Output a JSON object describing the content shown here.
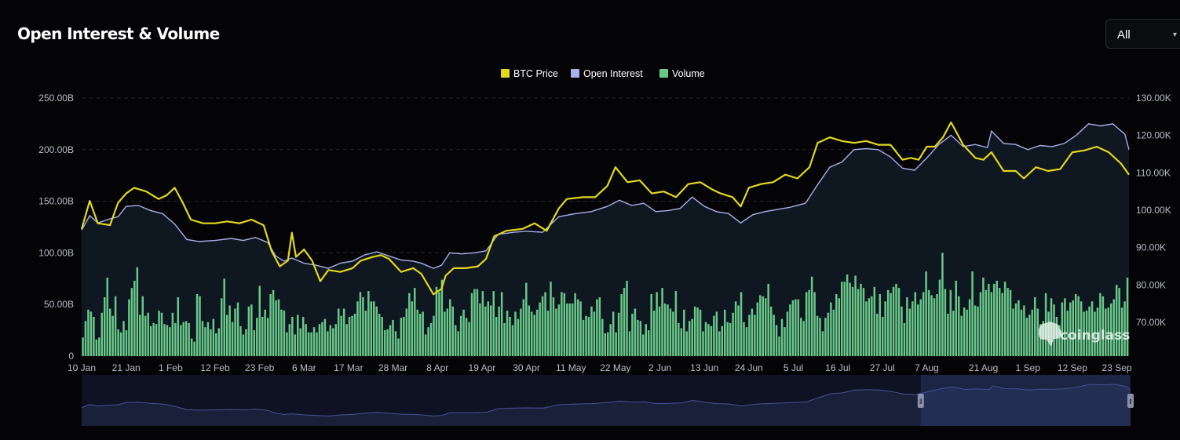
{
  "header": {
    "title": "Open Interest & Volume",
    "range_select": {
      "value": "All",
      "caret": "▾"
    }
  },
  "watermark": "coinglass",
  "colors": {
    "price": "#e3d81c",
    "open_interest": "#a9b0e8",
    "volume": "#69c989",
    "oi_area": "#0f1721",
    "grid": "#22252c"
  },
  "chart_data": {
    "type": "line",
    "legend_position": "top-center",
    "grid": true,
    "ylabel": "",
    "xlabel": "",
    "x_ticks": [
      "10 Jan",
      "21 Jan",
      "1 Feb",
      "12 Feb",
      "23 Feb",
      "6 Mar",
      "17 Mar",
      "28 Mar",
      "8 Apr",
      "19 Apr",
      "30 Apr",
      "11 May",
      "22 May",
      "2 Jun",
      "13 Jun",
      "24 Jun",
      "5 Jul",
      "16 Jul",
      "27 Jul",
      "7 Aug",
      "21 Aug",
      "1 Sep",
      "12 Sep",
      "23 Sep"
    ],
    "y_left": {
      "ticks": [
        "0",
        "50.00B",
        "100.00B",
        "150.00B",
        "200.00B",
        "250.00B"
      ],
      "range": [
        0,
        250
      ]
    },
    "y_right": {
      "ticks": [
        "70.00K",
        "80.00K",
        "90.00K",
        "100.00K",
        "110.00K",
        "120.00K",
        "130.00K"
      ],
      "range": [
        61,
        130
      ]
    },
    "series": [
      {
        "name": "BTC Price",
        "axis": "right",
        "unit": "K USD",
        "points": [
          [
            "10 Jan",
            95.0
          ],
          [
            "12 Jan",
            102.5
          ],
          [
            "14 Jan",
            96.5
          ],
          [
            "17 Jan",
            96.0
          ],
          [
            "19 Jan",
            102.0
          ],
          [
            "21 Jan",
            104.5
          ],
          [
            "23 Jan",
            106.0
          ],
          [
            "26 Jan",
            105.0
          ],
          [
            "29 Jan",
            103.0
          ],
          [
            "31 Jan",
            104.0
          ],
          [
            "2 Feb",
            106.0
          ],
          [
            "4 Feb",
            102.0
          ],
          [
            "6 Feb",
            97.5
          ],
          [
            "9 Feb",
            96.5
          ],
          [
            "12 Feb",
            96.5
          ],
          [
            "15 Feb",
            97.0
          ],
          [
            "18 Feb",
            96.5
          ],
          [
            "21 Feb",
            97.5
          ],
          [
            "24 Feb",
            96.0
          ],
          [
            "26 Feb",
            89.0
          ],
          [
            "28 Feb",
            85.0
          ],
          [
            "2 Mar",
            86.5
          ],
          [
            "3 Mar",
            94.0
          ],
          [
            "4 Mar",
            87.5
          ],
          [
            "6 Mar",
            89.5
          ],
          [
            "8 Mar",
            86.5
          ],
          [
            "10 Mar",
            81.0
          ],
          [
            "12 Mar",
            84.0
          ],
          [
            "15 Mar",
            83.5
          ],
          [
            "18 Mar",
            84.5
          ],
          [
            "20 Mar",
            86.5
          ],
          [
            "23 Mar",
            87.5
          ],
          [
            "25 Mar",
            88.0
          ],
          [
            "27 Mar",
            87.0
          ],
          [
            "30 Mar",
            83.5
          ],
          [
            "2 Apr",
            84.5
          ],
          [
            "4 Apr",
            83.0
          ],
          [
            "7 Apr",
            77.5
          ],
          [
            "9 Apr",
            79.0
          ],
          [
            "10 Apr",
            82.5
          ],
          [
            "12 Apr",
            84.5
          ],
          [
            "15 Apr",
            84.5
          ],
          [
            "18 Apr",
            85.0
          ],
          [
            "20 Apr",
            87.0
          ],
          [
            "22 Apr",
            93.0
          ],
          [
            "25 Apr",
            94.5
          ],
          [
            "29 Apr",
            95.0
          ],
          [
            "2 May",
            96.5
          ],
          [
            "5 May",
            94.5
          ],
          [
            "8 May",
            100.5
          ],
          [
            "10 May",
            103.0
          ],
          [
            "14 May",
            103.5
          ],
          [
            "17 May",
            103.5
          ],
          [
            "20 May",
            106.5
          ],
          [
            "22 May",
            111.5
          ],
          [
            "25 May",
            107.5
          ],
          [
            "28 May",
            108.0
          ],
          [
            "31 May",
            104.5
          ],
          [
            "3 Jun",
            105.0
          ],
          [
            "6 Jun",
            103.5
          ],
          [
            "9 Jun",
            107.0
          ],
          [
            "12 Jun",
            107.5
          ],
          [
            "15 Jun",
            105.5
          ],
          [
            "17 Jun",
            104.5
          ],
          [
            "20 Jun",
            103.5
          ],
          [
            "22 Jun",
            101.0
          ],
          [
            "24 Jun",
            106.0
          ],
          [
            "27 Jun",
            107.0
          ],
          [
            "30 Jun",
            107.5
          ],
          [
            "3 Jul",
            109.5
          ],
          [
            "6 Jul",
            108.5
          ],
          [
            "9 Jul",
            111.5
          ],
          [
            "11 Jul",
            118.0
          ],
          [
            "14 Jul",
            119.5
          ],
          [
            "17 Jul",
            118.5
          ],
          [
            "20 Jul",
            118.0
          ],
          [
            "23 Jul",
            118.5
          ],
          [
            "26 Jul",
            117.5
          ],
          [
            "29 Jul",
            117.5
          ],
          [
            "1 Aug",
            113.5
          ],
          [
            "3 Aug",
            114.0
          ],
          [
            "5 Aug",
            113.5
          ],
          [
            "7 Aug",
            117.0
          ],
          [
            "9 Aug",
            117.0
          ],
          [
            "11 Aug",
            119.5
          ],
          [
            "13 Aug",
            123.5
          ],
          [
            "16 Aug",
            117.5
          ],
          [
            "19 Aug",
            114.0
          ],
          [
            "21 Aug",
            113.5
          ],
          [
            "23 Aug",
            115.5
          ],
          [
            "26 Aug",
            110.5
          ],
          [
            "29 Aug",
            110.5
          ],
          [
            "31 Aug",
            108.5
          ],
          [
            "3 Sep",
            111.5
          ],
          [
            "6 Sep",
            110.5
          ],
          [
            "9 Sep",
            111.0
          ],
          [
            "12 Sep",
            115.5
          ],
          [
            "15 Sep",
            116.0
          ],
          [
            "18 Sep",
            117.0
          ],
          [
            "21 Sep",
            115.5
          ],
          [
            "24 Sep",
            112.5
          ],
          [
            "26 Sep",
            109.5
          ]
        ]
      },
      {
        "name": "Open Interest",
        "axis": "left",
        "unit": "B USD",
        "points": [
          [
            "10 Jan",
            122
          ],
          [
            "12 Jan",
            136
          ],
          [
            "14 Jan",
            129
          ],
          [
            "17 Jan",
            133
          ],
          [
            "19 Jan",
            135
          ],
          [
            "21 Jan",
            145
          ],
          [
            "24 Jan",
            146
          ],
          [
            "27 Jan",
            141
          ],
          [
            "30 Jan",
            138
          ],
          [
            "2 Feb",
            128
          ],
          [
            "5 Feb",
            113
          ],
          [
            "8 Feb",
            111
          ],
          [
            "12 Feb",
            112
          ],
          [
            "16 Feb",
            114
          ],
          [
            "19 Feb",
            112
          ],
          [
            "22 Feb",
            115
          ],
          [
            "25 Feb",
            110
          ],
          [
            "27 Feb",
            97
          ],
          [
            "1 Mar",
            92
          ],
          [
            "3 Mar",
            95
          ],
          [
            "6 Mar",
            90
          ],
          [
            "9 Mar",
            88
          ],
          [
            "12 Mar",
            85
          ],
          [
            "15 Mar",
            90
          ],
          [
            "18 Mar",
            92
          ],
          [
            "21 Mar",
            98
          ],
          [
            "24 Mar",
            101
          ],
          [
            "27 Mar",
            97
          ],
          [
            "30 Mar",
            93
          ],
          [
            "2 Apr",
            92
          ],
          [
            "4 Apr",
            90
          ],
          [
            "7 Apr",
            85
          ],
          [
            "9 Apr",
            88
          ],
          [
            "11 Apr",
            100
          ],
          [
            "14 Apr",
            99
          ],
          [
            "17 Apr",
            100
          ],
          [
            "20 Apr",
            102
          ],
          [
            "23 Apr",
            118
          ],
          [
            "27 Apr",
            120
          ],
          [
            "30 Apr",
            121
          ],
          [
            "4 May",
            120
          ],
          [
            "8 May",
            135
          ],
          [
            "12 May",
            138
          ],
          [
            "16 May",
            140
          ],
          [
            "20 May",
            145
          ],
          [
            "23 May",
            151
          ],
          [
            "26 May",
            146
          ],
          [
            "29 May",
            148
          ],
          [
            "1 Jun",
            140
          ],
          [
            "4 Jun",
            141
          ],
          [
            "7 Jun",
            143
          ],
          [
            "10 Jun",
            154
          ],
          [
            "13 Jun",
            145
          ],
          [
            "16 Jun",
            140
          ],
          [
            "19 Jun",
            138
          ],
          [
            "22 Jun",
            129
          ],
          [
            "25 Jun",
            137
          ],
          [
            "28 Jun",
            140
          ],
          [
            "1 Jul",
            142
          ],
          [
            "4 Jul",
            144
          ],
          [
            "8 Jul",
            148
          ],
          [
            "11 Jul",
            166
          ],
          [
            "14 Jul",
            183
          ],
          [
            "17 Jul",
            188
          ],
          [
            "20 Jul",
            200
          ],
          [
            "23 Jul",
            201
          ],
          [
            "26 Jul",
            200
          ],
          [
            "29 Jul",
            193
          ],
          [
            "1 Aug",
            182
          ],
          [
            "4 Aug",
            180
          ],
          [
            "7 Aug",
            192
          ],
          [
            "10 Aug",
            205
          ],
          [
            "13 Aug",
            214
          ],
          [
            "16 Aug",
            203
          ],
          [
            "19 Aug",
            205
          ],
          [
            "22 Aug",
            202
          ],
          [
            "23 Aug",
            218
          ],
          [
            "26 Aug",
            206
          ],
          [
            "29 Aug",
            205
          ],
          [
            "1 Sep",
            200
          ],
          [
            "4 Sep",
            204
          ],
          [
            "7 Sep",
            203
          ],
          [
            "10 Sep",
            206
          ],
          [
            "13 Sep",
            214
          ],
          [
            "16 Sep",
            225
          ],
          [
            "19 Sep",
            223
          ],
          [
            "22 Sep",
            225
          ],
          [
            "25 Sep",
            215
          ],
          [
            "26 Sep",
            200
          ]
        ]
      },
      {
        "name": "Volume",
        "axis": "left",
        "unit": "B USD",
        "kind": "bar",
        "x_range": [
          "10 Jan",
          "26 Sep"
        ],
        "values": [
          18,
          34,
          45,
          43,
          38,
          16,
          18,
          42,
          57,
          76,
          46,
          39,
          58,
          26,
          23,
          34,
          25,
          55,
          66,
          73,
          86,
          40,
          58,
          39,
          42,
          29,
          32,
          31,
          44,
          42,
          31,
          30,
          28,
          42,
          32,
          57,
          30,
          33,
          34,
          32,
          17,
          14,
          60,
          58,
          34,
          28,
          33,
          26,
          36,
          22,
          27,
          56,
          75,
          40,
          49,
          33,
          46,
          52,
          29,
          21,
          26,
          48,
          50,
          25,
          37,
          68,
          38,
          45,
          37,
          60,
          64,
          54,
          55,
          45,
          44,
          23,
          31,
          38,
          21,
          40,
          27,
          38,
          31,
          23,
          23,
          28,
          23,
          31,
          33,
          36,
          24,
          30,
          27,
          31,
          46,
          39,
          46,
          31,
          38,
          39,
          41,
          53,
          62,
          57,
          44,
          63,
          53,
          53,
          48,
          41,
          38,
          25,
          26,
          30,
          35,
          24,
          17,
          37,
          38,
          46,
          61,
          53,
          66,
          45,
          41,
          43,
          21,
          28,
          32,
          39,
          67,
          62,
          74,
          43,
          46,
          55,
          48,
          30,
          24,
          39,
          45,
          37,
          33,
          61,
          65,
          65,
          51,
          63,
          48,
          53,
          49,
          63,
          38,
          48,
          62,
          32,
          44,
          38,
          30,
          43,
          36,
          46,
          55,
          71,
          49,
          43,
          40,
          45,
          52,
          58,
          62,
          44,
          72,
          57,
          46,
          50,
          62,
          61,
          51,
          51,
          51,
          61,
          55,
          53,
          35,
          39,
          38,
          48,
          43,
          55,
          57,
          36,
          22,
          23,
          31,
          43,
          23,
          42,
          60,
          66,
          73,
          24,
          41,
          46,
          35,
          34,
          21,
          31,
          25,
          60,
          44,
          62,
          48,
          66,
          51,
          50,
          46,
          43,
          63,
          32,
          27,
          45,
          24,
          34,
          36,
          48,
          47,
          45,
          24,
          33,
          31,
          29,
          39,
          43,
          24,
          29,
          45,
          33,
          32,
          42,
          53,
          49,
          62,
          33,
          28,
          40,
          46,
          40,
          52,
          59,
          58,
          56,
          70,
          48,
          40,
          30,
          19,
          36,
          28,
          43,
          50,
          54,
          55,
          55,
          37,
          34,
          62,
          64,
          77,
          62,
          39,
          37,
          24,
          37,
          42,
          52,
          45,
          60,
          56,
          72,
          72,
          79,
          71,
          67,
          78,
          65,
          70,
          66,
          53,
          56,
          58,
          67,
          41,
          60,
          38,
          53,
          64,
          61,
          67,
          70,
          66,
          48,
          32,
          57,
          46,
          53,
          62,
          50,
          55,
          62,
          82,
          64,
          59,
          56,
          60,
          74,
          100,
          65,
          41,
          64,
          44,
          73,
          58,
          39,
          47,
          45,
          55,
          82,
          49,
          48,
          62,
          76,
          64,
          70,
          62,
          70,
          73,
          66,
          61,
          72,
          66,
          64,
          46,
          51,
          54,
          45,
          49,
          37,
          40,
          45,
          57,
          46,
          31,
          34,
          61,
          43,
          56,
          50,
          38,
          30,
          52,
          56,
          44,
          52,
          54,
          60,
          58,
          53,
          43,
          44,
          48,
          53,
          43,
          47,
          61,
          58,
          46,
          47,
          51,
          55,
          69,
          66,
          47,
          53,
          76
        ]
      }
    ]
  },
  "navigator": {
    "handle_left_glyph": "‖",
    "handle_right_glyph": "‖",
    "selection": [
      0.8,
      1.0
    ]
  }
}
